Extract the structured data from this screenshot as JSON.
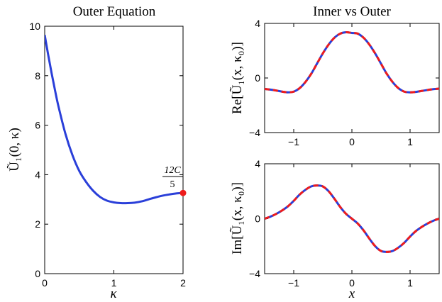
{
  "chart_data": [
    {
      "type": "line",
      "title": "Outer Equation",
      "xlabel": "κ",
      "ylabel": "Ũ₁(0, κ)",
      "xlim": [
        0,
        2
      ],
      "ylim": [
        0,
        10
      ],
      "xticks": [
        "0",
        "1",
        "2"
      ],
      "yticks": [
        "0",
        "2",
        "4",
        "6",
        "8",
        "10"
      ],
      "series": [
        {
          "color": "#2a3fd9",
          "x": [
            0,
            0.05,
            0.1,
            0.15,
            0.2,
            0.3,
            0.4,
            0.5,
            0.6,
            0.7,
            0.8,
            0.9,
            1.0,
            1.1,
            1.2,
            1.3,
            1.4,
            1.5,
            1.6,
            1.7,
            1.8,
            1.9,
            2.0
          ],
          "y": [
            9.65,
            8.85,
            8.1,
            7.4,
            6.75,
            5.65,
            4.8,
            4.15,
            3.7,
            3.35,
            3.1,
            2.95,
            2.88,
            2.85,
            2.85,
            2.87,
            2.92,
            3.0,
            3.08,
            3.15,
            3.2,
            3.24,
            3.26
          ]
        }
      ],
      "marker": {
        "x": 2.0,
        "y": 3.26,
        "color": "#ee1c1c"
      },
      "annotation": {
        "numerator": "12C",
        "denominator": "5"
      }
    },
    {
      "type": "line",
      "title": "Inner vs Outer",
      "xlabel": "",
      "ylabel": "Re[Ũ₁(x, κ₀)]",
      "xlim": [
        -1.5,
        1.5
      ],
      "ylim": [
        -4,
        4
      ],
      "xticks": [
        "−1",
        "0",
        "1"
      ],
      "yticks": [
        "−4",
        "0",
        "4"
      ],
      "series": [
        {
          "color": "#2a3fd9",
          "style": "solid",
          "x": [
            -1.5,
            -1.4,
            -1.3,
            -1.2,
            -1.1,
            -1.0,
            -0.9,
            -0.8,
            -0.7,
            -0.6,
            -0.5,
            -0.4,
            -0.3,
            -0.2,
            -0.1,
            0,
            0.1,
            0.2,
            0.3,
            0.4,
            0.5,
            0.6,
            0.7,
            0.8,
            0.9,
            1.0,
            1.1,
            1.2,
            1.3,
            1.4,
            1.5
          ],
          "y": [
            -0.8,
            -0.85,
            -0.92,
            -1.0,
            -1.05,
            -1.0,
            -0.75,
            -0.3,
            0.3,
            1.05,
            1.8,
            2.45,
            2.95,
            3.25,
            3.35,
            3.3,
            3.25,
            2.95,
            2.45,
            1.8,
            1.05,
            0.3,
            -0.3,
            -0.75,
            -1.0,
            -1.05,
            -1.02,
            -0.95,
            -0.88,
            -0.82,
            -0.78
          ]
        },
        {
          "color": "#ee1c1c",
          "style": "dashed",
          "x": [
            -1.5,
            -1.4,
            -1.3,
            -1.2,
            -1.1,
            -1.0,
            -0.9,
            -0.8,
            -0.7,
            -0.6,
            -0.5,
            -0.4,
            -0.3,
            -0.2,
            -0.1,
            0,
            0.1,
            0.2,
            0.3,
            0.4,
            0.5,
            0.6,
            0.7,
            0.8,
            0.9,
            1.0,
            1.1,
            1.2,
            1.3,
            1.4,
            1.5
          ],
          "y": [
            -0.8,
            -0.85,
            -0.92,
            -1.0,
            -1.05,
            -1.0,
            -0.75,
            -0.3,
            0.3,
            1.05,
            1.8,
            2.45,
            2.95,
            3.25,
            3.35,
            3.3,
            3.25,
            2.95,
            2.45,
            1.8,
            1.05,
            0.3,
            -0.3,
            -0.75,
            -1.0,
            -1.05,
            -1.02,
            -0.95,
            -0.88,
            -0.82,
            -0.78
          ]
        }
      ]
    },
    {
      "type": "line",
      "title": "",
      "xlabel": "x",
      "ylabel": "Im[Ũ₁(x, κ₀)]",
      "xlim": [
        -1.5,
        1.5
      ],
      "ylim": [
        -4,
        4
      ],
      "xticks": [
        "−1",
        "0",
        "1"
      ],
      "yticks": [
        "−4",
        "0",
        "4"
      ],
      "series": [
        {
          "color": "#2a3fd9",
          "style": "solid",
          "x": [
            -1.5,
            -1.4,
            -1.3,
            -1.2,
            -1.1,
            -1.0,
            -0.9,
            -0.8,
            -0.7,
            -0.6,
            -0.5,
            -0.4,
            -0.3,
            -0.2,
            -0.1,
            0,
            0.1,
            0.2,
            0.3,
            0.4,
            0.5,
            0.6,
            0.7,
            0.8,
            0.9,
            1.0,
            1.1,
            1.2,
            1.3,
            1.4,
            1.5
          ],
          "y": [
            0.0,
            0.15,
            0.35,
            0.6,
            0.9,
            1.3,
            1.75,
            2.1,
            2.35,
            2.42,
            2.35,
            2.0,
            1.45,
            0.85,
            0.35,
            0.0,
            -0.35,
            -0.85,
            -1.45,
            -2.0,
            -2.35,
            -2.42,
            -2.35,
            -2.1,
            -1.75,
            -1.3,
            -0.9,
            -0.6,
            -0.35,
            -0.15,
            0.0
          ]
        },
        {
          "color": "#ee1c1c",
          "style": "dashed",
          "x": [
            -1.5,
            -1.4,
            -1.3,
            -1.2,
            -1.1,
            -1.0,
            -0.9,
            -0.8,
            -0.7,
            -0.6,
            -0.5,
            -0.4,
            -0.3,
            -0.2,
            -0.1,
            0,
            0.1,
            0.2,
            0.3,
            0.4,
            0.5,
            0.6,
            0.7,
            0.8,
            0.9,
            1.0,
            1.1,
            1.2,
            1.3,
            1.4,
            1.5
          ],
          "y": [
            0.0,
            0.15,
            0.35,
            0.6,
            0.9,
            1.3,
            1.75,
            2.1,
            2.35,
            2.42,
            2.35,
            2.0,
            1.45,
            0.85,
            0.35,
            0.0,
            -0.35,
            -0.85,
            -1.45,
            -2.0,
            -2.35,
            -2.42,
            -2.35,
            -2.1,
            -1.75,
            -1.3,
            -0.9,
            -0.6,
            -0.35,
            -0.15,
            0.0
          ]
        }
      ]
    }
  ]
}
